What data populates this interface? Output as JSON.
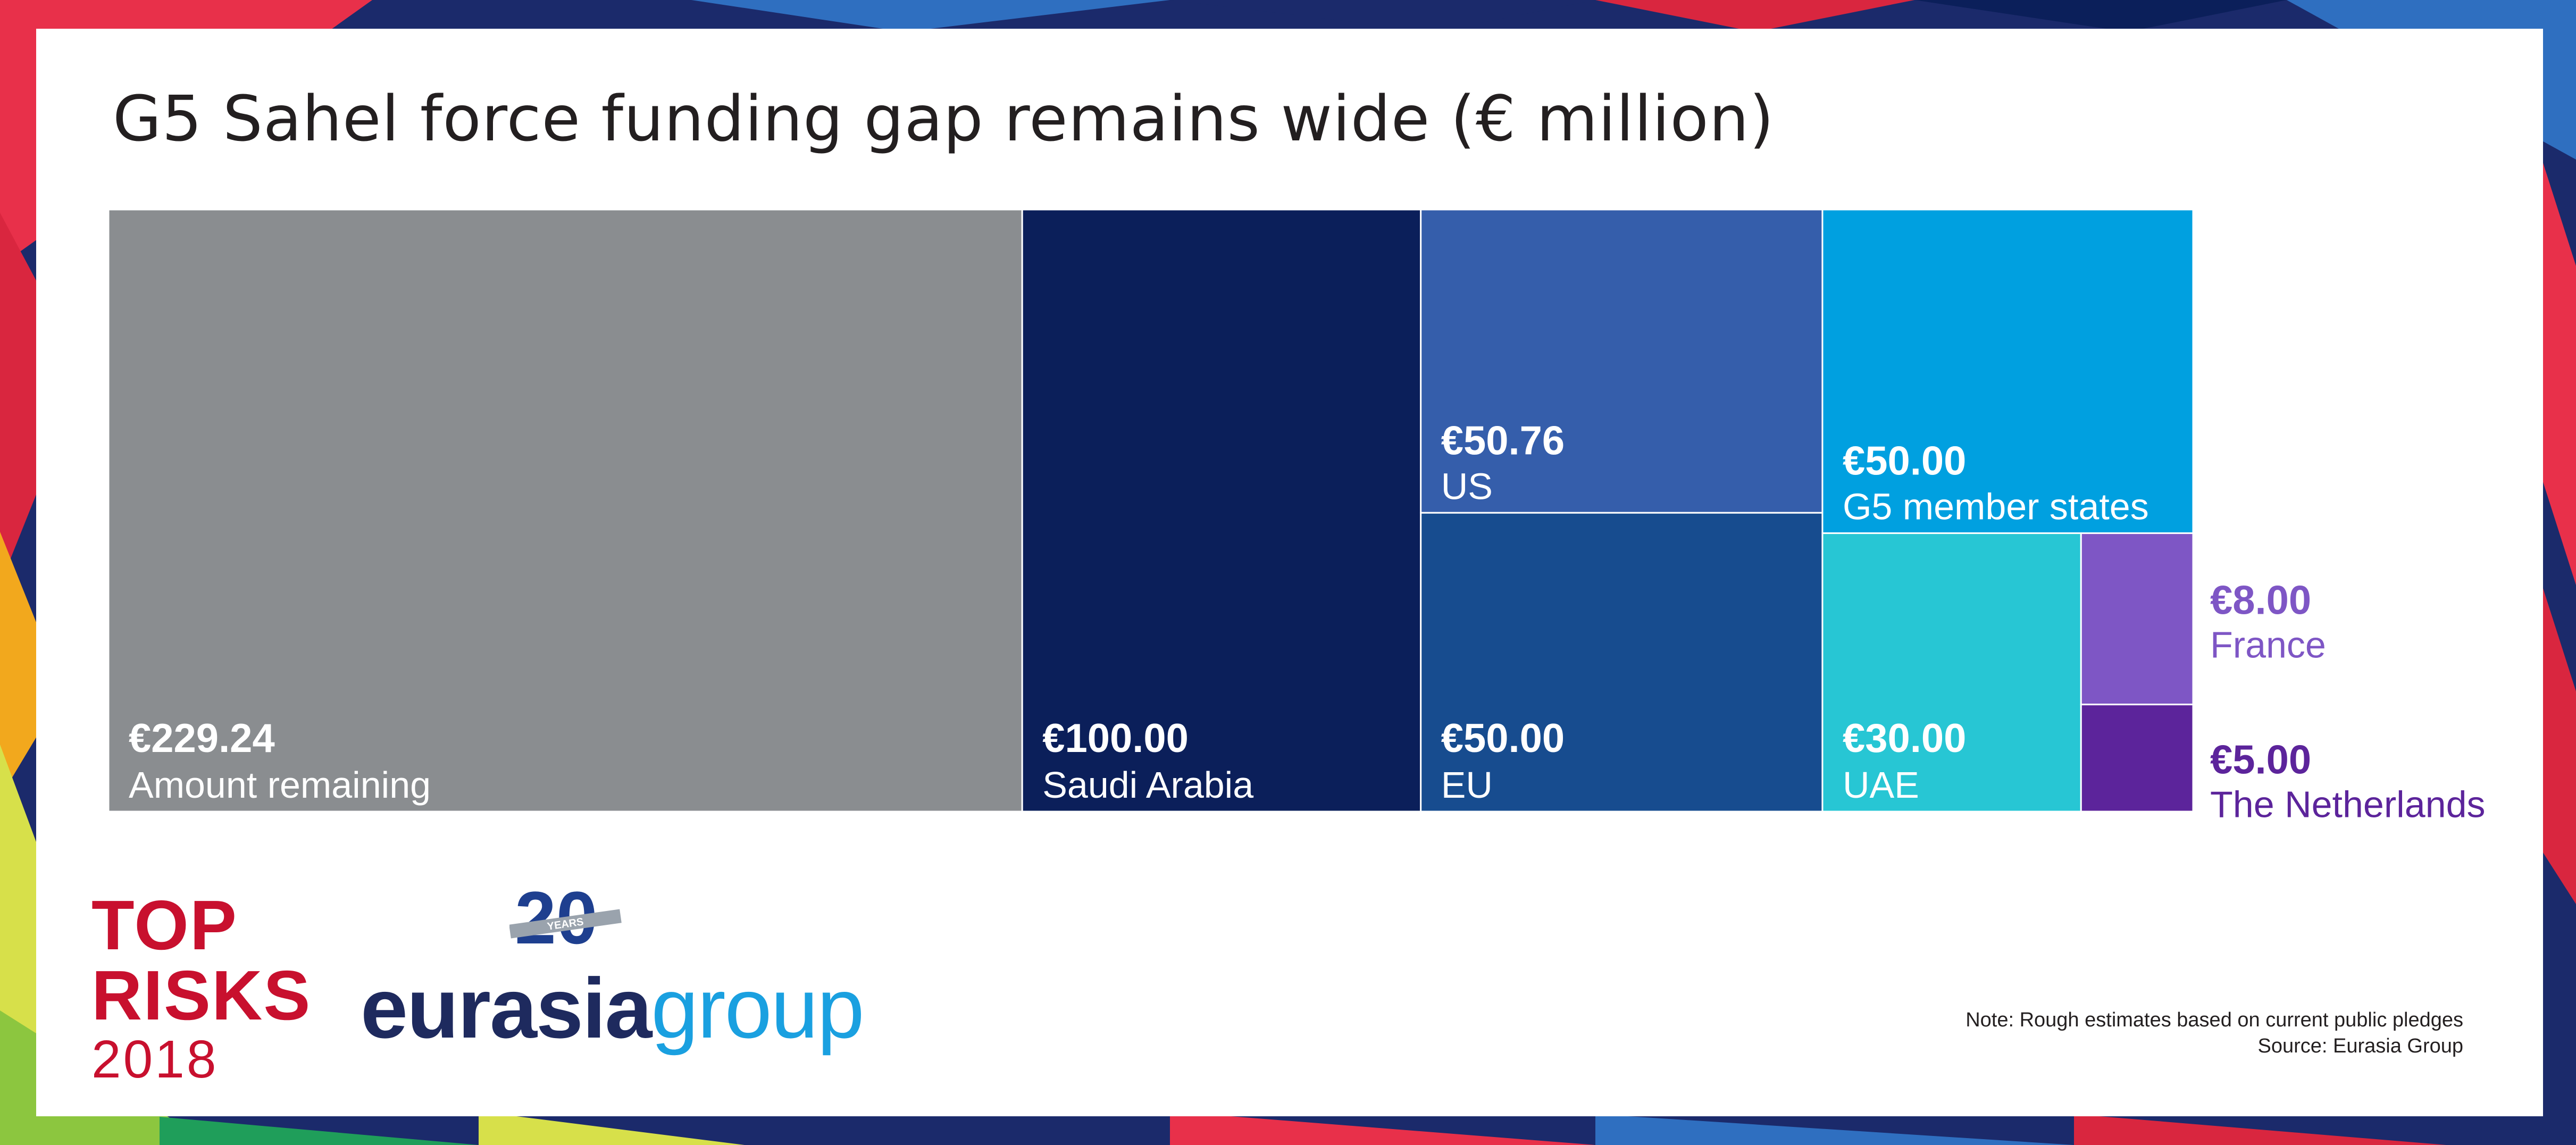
{
  "title": "G5 Sahel force funding gap remains wide (€ million)",
  "chart_data": {
    "type": "treemap",
    "title": "G5 Sahel force funding gap remains wide (€ million)",
    "unit": "€ million",
    "items": [
      {
        "label": "Amount remaining",
        "value": 229.24,
        "value_label": "€229.24",
        "color": "#8a8d90"
      },
      {
        "label": "Saudi Arabia",
        "value": 100.0,
        "value_label": "€100.00",
        "color": "#0b1f5a"
      },
      {
        "label": "US",
        "value": 50.76,
        "value_label": "€50.76",
        "color": "#355eab"
      },
      {
        "label": "EU",
        "value": 50.0,
        "value_label": "€50.00",
        "color": "#174c8f"
      },
      {
        "label": "G5 member states",
        "value": 50.0,
        "value_label": "€50.00",
        "color": "#00a0e0"
      },
      {
        "label": "UAE",
        "value": 30.0,
        "value_label": "€30.00",
        "color": "#27c6d4"
      },
      {
        "label": "France",
        "value": 8.0,
        "value_label": "€8.00",
        "color": "#7e56c5"
      },
      {
        "label": "The Netherlands",
        "value": 5.0,
        "value_label": "€5.00",
        "color": "#5c249b"
      }
    ]
  },
  "logos": {
    "top_risks_line1": "TOP",
    "top_risks_line2": "RISKS",
    "top_risks_year": "2018",
    "brand_part1": "eurasia",
    "brand_part2": "group",
    "badge_number": "20",
    "badge_text": "YEARS"
  },
  "footer": {
    "note": "Note: Rough estimates based on current public pledges",
    "source": "Source: Eurasia Group"
  }
}
